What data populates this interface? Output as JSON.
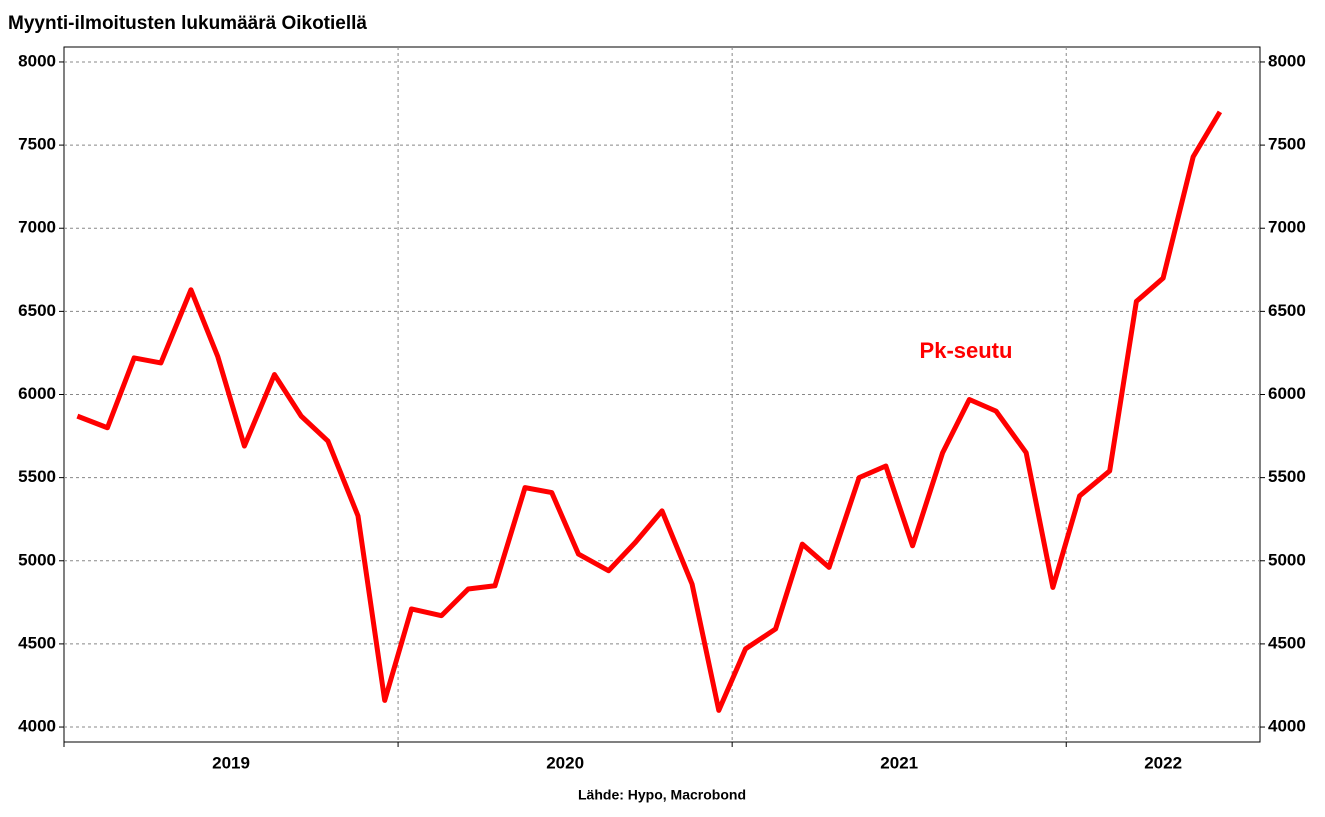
{
  "chart_data": {
    "type": "line",
    "title": "Myynti-ilmoitusten lukumäärä Oikotiellä",
    "source": "Lähde: Hypo, Macrobond",
    "annotation": "Pk-seutu",
    "x": [
      2019.04,
      2019.13,
      2019.21,
      2019.29,
      2019.38,
      2019.46,
      2019.54,
      2019.63,
      2019.71,
      2019.79,
      2019.88,
      2019.96,
      2020.04,
      2020.13,
      2020.21,
      2020.29,
      2020.38,
      2020.46,
      2020.54,
      2020.63,
      2020.71,
      2020.79,
      2020.88,
      2020.96,
      2021.04,
      2021.13,
      2021.21,
      2021.29,
      2021.38,
      2021.46,
      2021.54,
      2021.63,
      2021.71,
      2021.79,
      2021.88,
      2021.96,
      2022.04,
      2022.13,
      2022.21,
      2022.29,
      2022.38,
      2022.46
    ],
    "series": [
      {
        "name": "Pk-seutu",
        "color": "#ff0000",
        "values": [
          5870,
          5800,
          6220,
          6190,
          6630,
          6230,
          5690,
          6120,
          5870,
          5720,
          5270,
          4160,
          4710,
          4670,
          4830,
          4850,
          5440,
          5410,
          5040,
          4940,
          5110,
          5300,
          4860,
          4100,
          4470,
          4590,
          5100,
          4960,
          5500,
          5570,
          5090,
          5650,
          5970,
          5900,
          5650,
          4840,
          5390,
          5540,
          6560,
          6700,
          7430,
          7700
        ]
      }
    ],
    "xlim": [
      2019,
      2022.58
    ],
    "xticks": [
      2019,
      2020,
      2021,
      2022
    ],
    "x_year_labels": [
      {
        "value": 2019.5,
        "label": "2019"
      },
      {
        "value": 2020.5,
        "label": "2020"
      },
      {
        "value": 2021.5,
        "label": "2021"
      },
      {
        "value": 2022.29,
        "label": "2022"
      }
    ],
    "ylim": [
      3910,
      8090
    ],
    "yticks": [
      4000,
      4500,
      5000,
      5500,
      6000,
      6500,
      7000,
      7500,
      8000
    ],
    "y2lim": [
      3910,
      8090
    ],
    "y2ticks": [
      4000,
      4500,
      5000,
      5500,
      6000,
      6500,
      7000,
      7500,
      8000
    ],
    "grid": true
  }
}
